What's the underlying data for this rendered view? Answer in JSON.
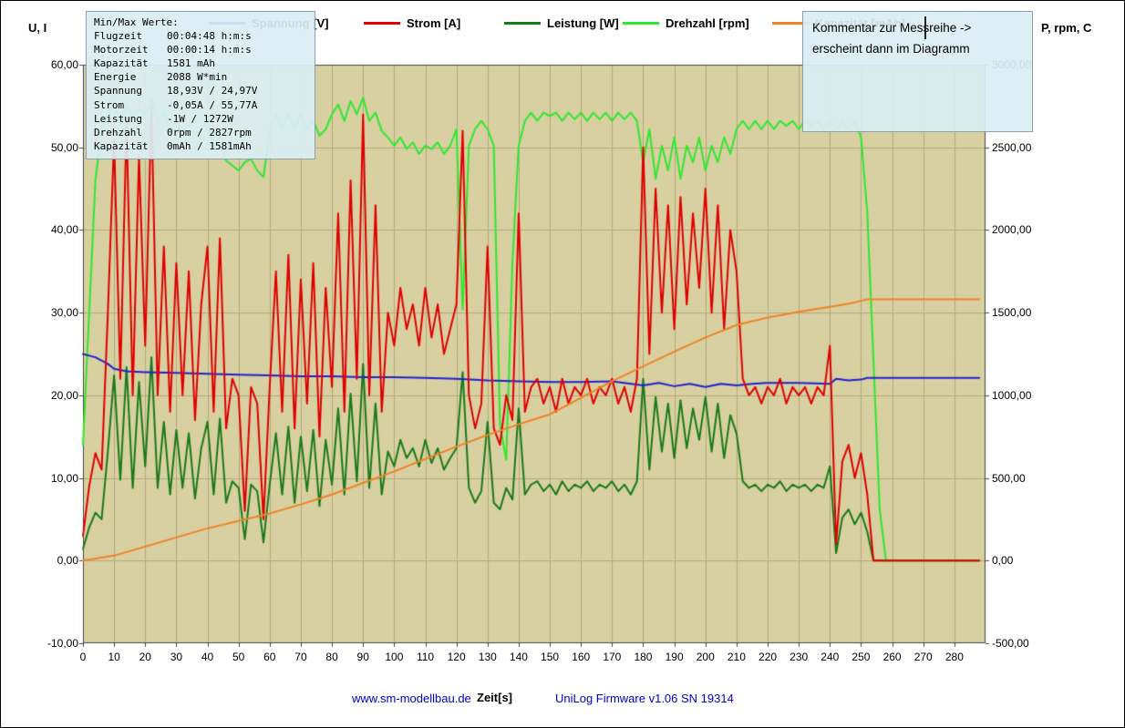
{
  "axes": {
    "left_title": "U, I",
    "right_title": "P, rpm, C"
  },
  "minmax_box": {
    "title": "Min/Max Werte:",
    "rows": [
      {
        "label": "Flugzeit",
        "value": "00:04:48 h:m:s"
      },
      {
        "label": "Motorzeit",
        "value": "00:00:14 h:m:s"
      },
      {
        "label": "Kapazität",
        "value": "1581 mAh"
      },
      {
        "label": "Energie",
        "value": "2088 W*min"
      },
      {
        "label": "Spannung",
        "value": "18,93V / 24,97V"
      },
      {
        "label": "Strom",
        "value": "-0,05A / 55,77A"
      },
      {
        "label": "Leistung",
        "value": "-1W / 1272W"
      },
      {
        "label": "Drehzahl",
        "value": "0rpm / 2827rpm"
      },
      {
        "label": "Kapazität",
        "value": "0mAh / 1581mAh"
      }
    ]
  },
  "comment_box": {
    "line1": "Kommentar zur Messreihe ->",
    "line2": "erscheint dann im Diagramm"
  },
  "footer": {
    "link": "www.sm-modellbau.de",
    "x_label": "Zeit[s]",
    "firmware": "UniLog Firmware v1.06 SN 19314"
  },
  "colors": {
    "plot_background": "#d8d0a0",
    "grid": "#b2aa7e",
    "info_box_background": "#daeef3",
    "link_blue": "#0000cc"
  },
  "chart_data": {
    "type": "line",
    "title": "",
    "xlabel": "Zeit[s]",
    "x_range": [
      0,
      290
    ],
    "left_axis": {
      "label": "U, I",
      "range": [
        -10,
        60
      ]
    },
    "right_axis": {
      "label": "P, rpm, C",
      "range": [
        -500,
        3000
      ]
    },
    "grid": true,
    "legend_position": "top",
    "plot_bg": "#d8d0a0",
    "grid_color": "#b2aa7e",
    "left_ticks": [
      [
        60,
        "60,00"
      ],
      [
        50,
        "50,00"
      ],
      [
        40,
        "40,00"
      ],
      [
        30,
        "30,00"
      ],
      [
        20,
        "20,00"
      ],
      [
        10,
        "10,00"
      ],
      [
        0,
        "0,00"
      ],
      [
        -10,
        "-10,00"
      ]
    ],
    "right_ticks": [
      [
        3000,
        "3000,00"
      ],
      [
        2500,
        "2500,00"
      ],
      [
        2000,
        "2000,00"
      ],
      [
        1500,
        "1500,00"
      ],
      [
        1000,
        "1000,00"
      ],
      [
        500,
        "500,00"
      ],
      [
        0,
        "0,00"
      ],
      [
        -500,
        "-500,00"
      ]
    ],
    "x_ticks": [
      [
        0,
        "0"
      ],
      [
        10,
        "10"
      ],
      [
        20,
        "20"
      ],
      [
        30,
        "30"
      ],
      [
        40,
        "40"
      ],
      [
        50,
        "50"
      ],
      [
        60,
        "60"
      ],
      [
        70,
        "70"
      ],
      [
        80,
        "80"
      ],
      [
        90,
        "90"
      ],
      [
        100,
        "100"
      ],
      [
        110,
        "110"
      ],
      [
        120,
        "120"
      ],
      [
        130,
        "130"
      ],
      [
        140,
        "140"
      ],
      [
        150,
        "150"
      ],
      [
        160,
        "160"
      ],
      [
        170,
        "170"
      ],
      [
        180,
        "180"
      ],
      [
        190,
        "190"
      ],
      [
        200,
        "200"
      ],
      [
        210,
        "210"
      ],
      [
        220,
        "220"
      ],
      [
        230,
        "230"
      ],
      [
        240,
        "240"
      ],
      [
        250,
        "250"
      ],
      [
        260,
        "260"
      ],
      [
        270,
        "270"
      ],
      [
        280,
        "280"
      ]
    ],
    "x_main": [
      0,
      2,
      4,
      6,
      8,
      10,
      12,
      14,
      16,
      18,
      20,
      22,
      24,
      26,
      28,
      30,
      32,
      34,
      36,
      38,
      40,
      42,
      44,
      46,
      48,
      50,
      52,
      54,
      56,
      58,
      60,
      62,
      64,
      66,
      68,
      70,
      72,
      74,
      76,
      78,
      80,
      82,
      84,
      86,
      88,
      90,
      92,
      94,
      96,
      98,
      100,
      102,
      104,
      106,
      108,
      110,
      112,
      114,
      116,
      118,
      120,
      122,
      124,
      126,
      128,
      130,
      132,
      134,
      136,
      138,
      140,
      142,
      144,
      146,
      148,
      150,
      152,
      154,
      156,
      158,
      160,
      162,
      164,
      166,
      168,
      170,
      172,
      174,
      176,
      178,
      180,
      182,
      184,
      186,
      188,
      190,
      192,
      194,
      196,
      198,
      200,
      202,
      204,
      206,
      208,
      210,
      212,
      214,
      216,
      218,
      220,
      222,
      224,
      226,
      228,
      230,
      232,
      234,
      236,
      238,
      240,
      242,
      244,
      246,
      248,
      250,
      252,
      254,
      256,
      258,
      260,
      264,
      270,
      280,
      288
    ],
    "series": [
      {
        "name": "Spannung [V]",
        "color": "#2020d0",
        "axis": "left",
        "z": 3,
        "x": [
          0,
          4,
          8,
          10,
          14,
          20,
          30,
          40,
          50,
          60,
          70,
          80,
          90,
          100,
          110,
          120,
          130,
          140,
          150,
          160,
          170,
          180,
          185,
          190,
          195,
          200,
          205,
          210,
          215,
          220,
          230,
          240,
          242,
          246,
          250,
          252,
          260,
          270,
          280,
          288
        ],
        "y": [
          25.0,
          24.6,
          23.8,
          23.2,
          22.9,
          22.8,
          22.7,
          22.6,
          22.5,
          22.4,
          22.3,
          22.3,
          22.2,
          22.2,
          22.1,
          22.0,
          21.8,
          21.7,
          21.6,
          21.6,
          21.7,
          21.2,
          21.5,
          21.1,
          21.4,
          21.0,
          21.4,
          21.2,
          21.4,
          21.5,
          21.5,
          21.4,
          22.0,
          21.8,
          21.9,
          22.1,
          22.1,
          22.1,
          22.1,
          22.1
        ]
      },
      {
        "name": "Strom [A]",
        "color": "#e00000",
        "axis": "left",
        "z": 4,
        "x": "main",
        "y": [
          3,
          9,
          13,
          11,
          30,
          51,
          22,
          53,
          20,
          49,
          26,
          55,
          20,
          38,
          18,
          36,
          20,
          35,
          17,
          31,
          38,
          18,
          39,
          16,
          22,
          20,
          6,
          21,
          19,
          5,
          21,
          35,
          18,
          37,
          16,
          34,
          19,
          36,
          15,
          33,
          21,
          42,
          18,
          46,
          22,
          54,
          20,
          43,
          18,
          30,
          26,
          33,
          28,
          31,
          26,
          33,
          27,
          31,
          25,
          28,
          31,
          52,
          20,
          16,
          19,
          38,
          16,
          14,
          20,
          17,
          42,
          18,
          21,
          22,
          19,
          21,
          18,
          22,
          19,
          21,
          20,
          22,
          19,
          21,
          20,
          22,
          19,
          21,
          18,
          22,
          50,
          25,
          45,
          30,
          43,
          28,
          44,
          31,
          42,
          33,
          45,
          30,
          43,
          28,
          40,
          35,
          22,
          20,
          21,
          19,
          21,
          20,
          22,
          19,
          21,
          20,
          21,
          19,
          21,
          20,
          26,
          2,
          12,
          14,
          10,
          13,
          8,
          0,
          0,
          0,
          0,
          0,
          0,
          0,
          0
        ]
      },
      {
        "name": "Leistung [W]",
        "color": "#1a7a1a",
        "axis": "right",
        "z": 1,
        "x": "main",
        "y": [
          70,
          200,
          290,
          250,
          660,
          1120,
          490,
          1170,
          440,
          1080,
          570,
          1230,
          440,
          840,
          400,
          790,
          440,
          770,
          375,
          680,
          840,
          400,
          860,
          350,
          480,
          440,
          130,
          460,
          420,
          110,
          460,
          770,
          400,
          810,
          350,
          750,
          420,
          790,
          330,
          730,
          460,
          920,
          400,
          1010,
          480,
          1190,
          440,
          950,
          400,
          660,
          570,
          730,
          620,
          680,
          570,
          730,
          590,
          680,
          550,
          620,
          680,
          1140,
          440,
          350,
          420,
          840,
          350,
          310,
          440,
          370,
          920,
          400,
          460,
          480,
          420,
          460,
          400,
          480,
          420,
          460,
          440,
          480,
          420,
          460,
          440,
          480,
          420,
          460,
          400,
          480,
          1100,
          550,
          990,
          660,
          950,
          620,
          970,
          680,
          920,
          730,
          990,
          660,
          950,
          620,
          880,
          770,
          480,
          440,
          460,
          420,
          460,
          440,
          480,
          420,
          460,
          440,
          460,
          420,
          460,
          440,
          570,
          45,
          260,
          310,
          220,
          290,
          175,
          0,
          0,
          0,
          0,
          0,
          0,
          0,
          0
        ]
      },
      {
        "name": "Drehzahl [rpm]",
        "color": "#30e830",
        "axis": "right",
        "z": 2,
        "x": "main",
        "y": [
          700,
          1500,
          2300,
          2600,
          2700,
          2760,
          2650,
          2760,
          2680,
          2730,
          2700,
          2790,
          2650,
          2710,
          2600,
          2660,
          2600,
          2630,
          2580,
          2610,
          2660,
          2500,
          2560,
          2420,
          2390,
          2360,
          2410,
          2430,
          2360,
          2320,
          2600,
          2700,
          2610,
          2700,
          2620,
          2700,
          2610,
          2660,
          2570,
          2610,
          2700,
          2760,
          2660,
          2780,
          2700,
          2800,
          2660,
          2710,
          2600,
          2560,
          2510,
          2560,
          2490,
          2530,
          2460,
          2510,
          2490,
          2530,
          2460,
          2510,
          2610,
          1520,
          2510,
          2610,
          2660,
          2610,
          2510,
          820,
          610,
          1810,
          2510,
          2660,
          2710,
          2660,
          2710,
          2690,
          2710,
          2660,
          2710,
          2670,
          2710,
          2660,
          2710,
          2670,
          2710,
          2660,
          2710,
          2670,
          2710,
          2660,
          2410,
          2610,
          2310,
          2510,
          2360,
          2560,
          2310,
          2510,
          2410,
          2560,
          2360,
          2510,
          2410,
          2560,
          2460,
          2610,
          2660,
          2610,
          2660,
          2610,
          2660,
          2610,
          2660,
          2630,
          2660,
          2610,
          2660,
          2630,
          2660,
          2610,
          2660,
          2610,
          2660,
          2610,
          2660,
          2560,
          2110,
          1210,
          310,
          0,
          0,
          0,
          0,
          0,
          0
        ]
      },
      {
        "name": "Kapazität [mAh]",
        "color": "#f08228",
        "axis": "right",
        "z": 5,
        "x": [
          0,
          10,
          20,
          30,
          40,
          50,
          60,
          70,
          80,
          90,
          100,
          110,
          120,
          130,
          140,
          150,
          160,
          170,
          180,
          190,
          200,
          210,
          220,
          230,
          240,
          244,
          248,
          252,
          260,
          270,
          280,
          288
        ],
        "y": [
          0,
          30,
          85,
          140,
          195,
          240,
          285,
          340,
          400,
          470,
          540,
          615,
          690,
          760,
          825,
          885,
          985,
          1085,
          1175,
          1265,
          1350,
          1425,
          1470,
          1505,
          1535,
          1548,
          1562,
          1581,
          1581,
          1581,
          1581,
          1581
        ]
      }
    ]
  }
}
